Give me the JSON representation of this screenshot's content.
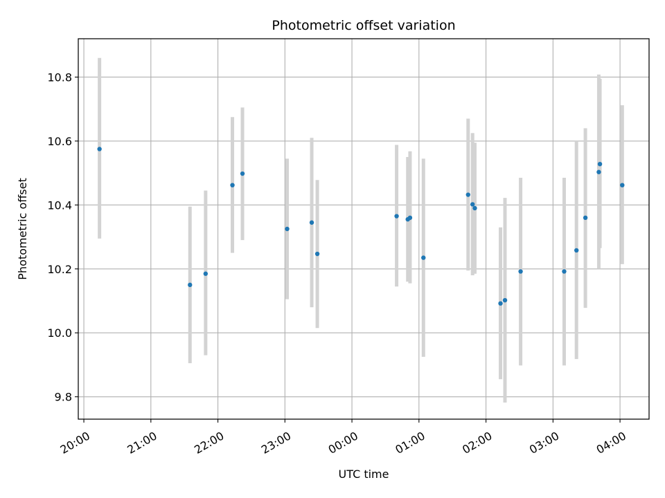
{
  "chart_data": {
    "type": "scatter",
    "title": "Photometric offset variation",
    "xlabel": "UTC time",
    "ylabel": "Photometric offset",
    "x_axis_kind": "time",
    "x_range": [
      "19:55",
      "04:26"
    ],
    "ylim": [
      9.73,
      10.92
    ],
    "grid": true,
    "legend": "none",
    "x_ticks": [
      "20:00",
      "21:00",
      "22:00",
      "23:00",
      "00:00",
      "01:00",
      "02:00",
      "03:00",
      "04:00"
    ],
    "y_ticks": [
      9.8,
      10.0,
      10.2,
      10.4,
      10.6,
      10.8
    ],
    "colors": {
      "point": "#1f77b4",
      "errorbar": "#d3d3d3",
      "grid": "#b0b0b0"
    },
    "points": [
      {
        "x": "20:14",
        "y": 10.575,
        "lo": 10.295,
        "hi": 10.86
      },
      {
        "x": "21:35",
        "y": 10.15,
        "lo": 9.905,
        "hi": 10.395
      },
      {
        "x": "21:49",
        "y": 10.185,
        "lo": 9.93,
        "hi": 10.445
      },
      {
        "x": "22:13",
        "y": 10.462,
        "lo": 10.25,
        "hi": 10.675
      },
      {
        "x": "22:22",
        "y": 10.498,
        "lo": 10.29,
        "hi": 10.705
      },
      {
        "x": "23:02",
        "y": 10.325,
        "lo": 10.105,
        "hi": 10.545
      },
      {
        "x": "23:24",
        "y": 10.345,
        "lo": 10.08,
        "hi": 10.61
      },
      {
        "x": "23:29",
        "y": 10.247,
        "lo": 10.015,
        "hi": 10.478
      },
      {
        "x": "00:40",
        "y": 10.365,
        "lo": 10.145,
        "hi": 10.588
      },
      {
        "x": "00:50",
        "y": 10.355,
        "lo": 10.16,
        "hi": 10.55
      },
      {
        "x": "00:52",
        "y": 10.36,
        "lo": 10.155,
        "hi": 10.568
      },
      {
        "x": "01:04",
        "y": 10.235,
        "lo": 9.925,
        "hi": 10.545
      },
      {
        "x": "01:44",
        "y": 10.432,
        "lo": 10.195,
        "hi": 10.67
      },
      {
        "x": "01:48",
        "y": 10.402,
        "lo": 10.18,
        "hi": 10.625
      },
      {
        "x": "01:50",
        "y": 10.39,
        "lo": 10.185,
        "hi": 10.595
      },
      {
        "x": "02:13",
        "y": 10.092,
        "lo": 9.855,
        "hi": 10.33
      },
      {
        "x": "02:17",
        "y": 10.102,
        "lo": 9.782,
        "hi": 10.422
      },
      {
        "x": "02:31",
        "y": 10.192,
        "lo": 9.898,
        "hi": 10.485
      },
      {
        "x": "03:10",
        "y": 10.192,
        "lo": 9.898,
        "hi": 10.485
      },
      {
        "x": "03:21",
        "y": 10.258,
        "lo": 9.918,
        "hi": 10.6
      },
      {
        "x": "03:29",
        "y": 10.36,
        "lo": 10.078,
        "hi": 10.64
      },
      {
        "x": "03:41",
        "y": 10.503,
        "lo": 10.2,
        "hi": 10.808
      },
      {
        "x": "03:42",
        "y": 10.528,
        "lo": 10.265,
        "hi": 10.795
      },
      {
        "x": "04:02",
        "y": 10.462,
        "lo": 10.215,
        "hi": 10.712
      }
    ]
  }
}
